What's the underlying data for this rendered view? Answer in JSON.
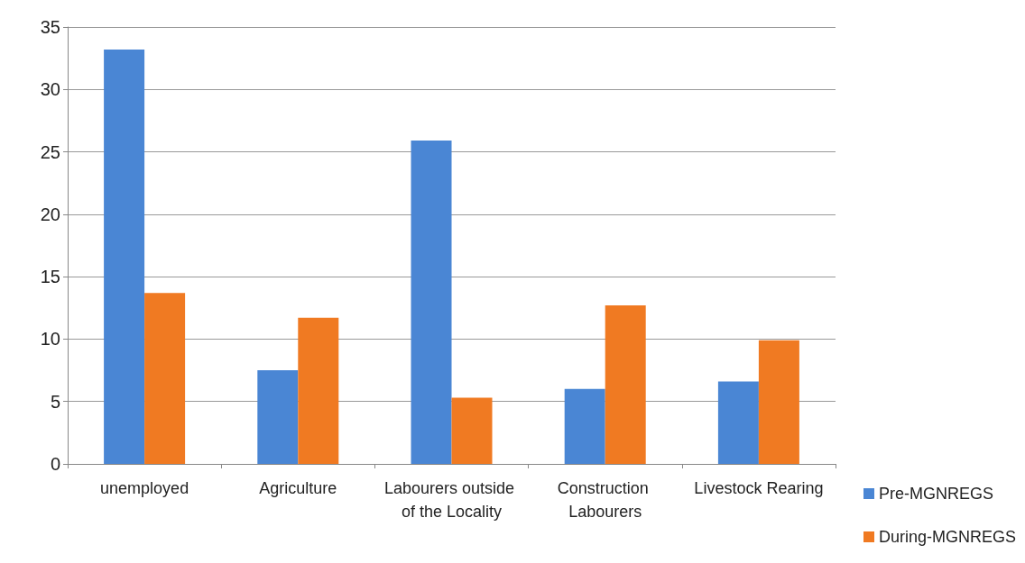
{
  "chart_data": {
    "type": "bar",
    "categories": [
      "unemployed",
      "Agriculture",
      "Labourers outside of the Locality",
      "Construction Labourers",
      "Livestock Rearing"
    ],
    "series": [
      {
        "name": "Pre-MGNREGS",
        "color": "#4a86d4",
        "values": [
          33.2,
          7.5,
          25.9,
          6,
          6.6
        ]
      },
      {
        "name": "During-MGNREGS",
        "color": "#f07a22",
        "values": [
          13.7,
          11.7,
          5.3,
          12.7,
          9.9
        ]
      }
    ],
    "ylim": [
      0,
      35
    ],
    "yticks": [
      0,
      5,
      10,
      15,
      20,
      25,
      30,
      35
    ],
    "grid": "y",
    "legend": "bottom right"
  }
}
